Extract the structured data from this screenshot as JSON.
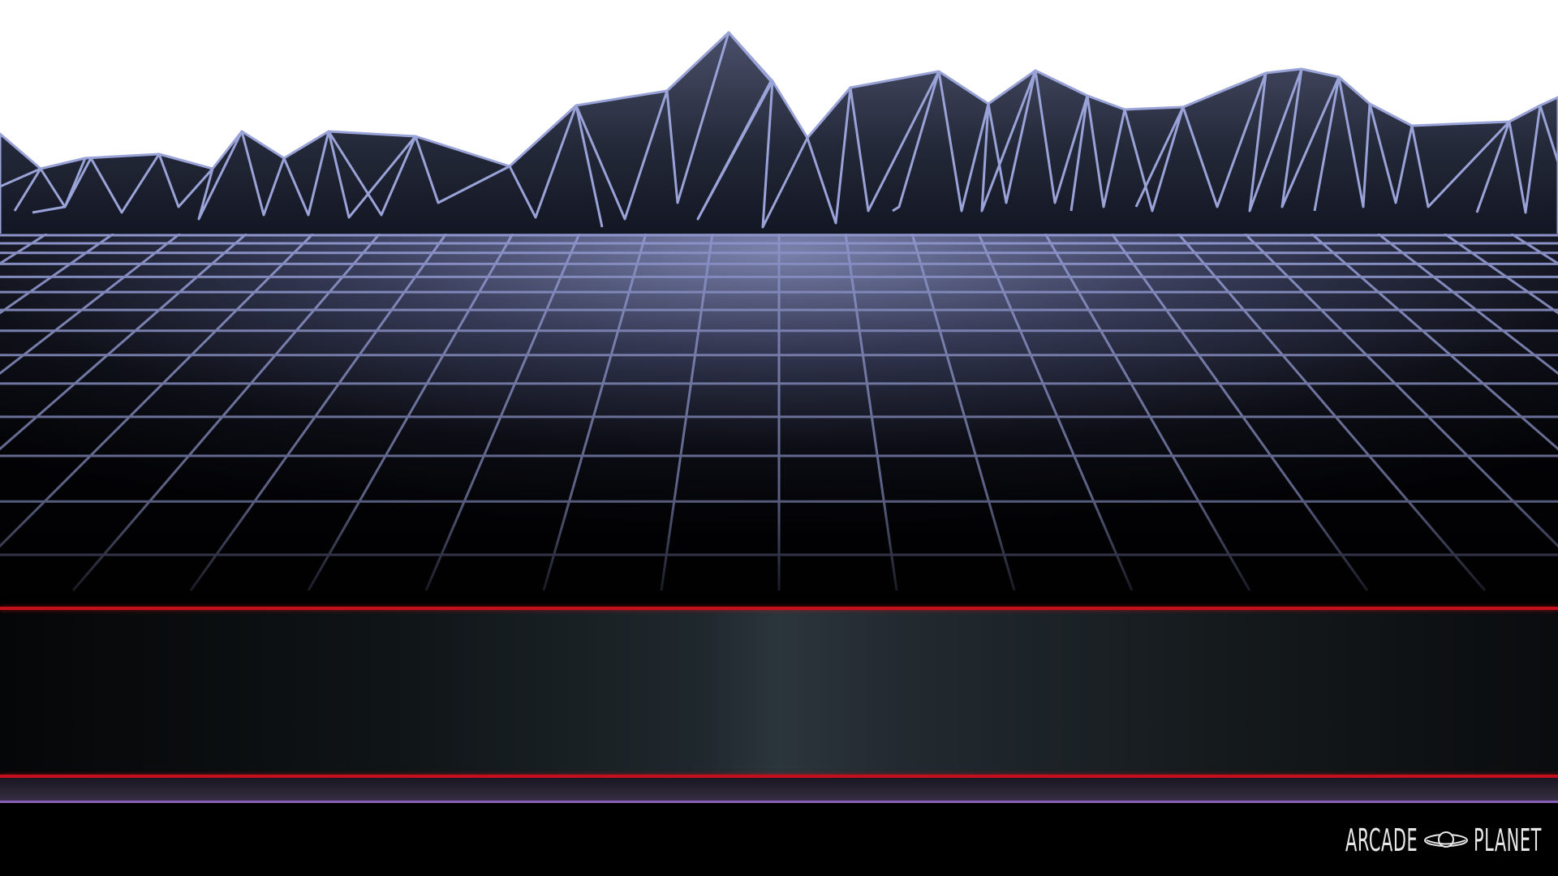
{
  "logo": {
    "part1": "ARCADE",
    "part2": "PLANET",
    "icon": "planet-icon"
  },
  "colors": {
    "sky": "#ffffff",
    "mountain_fill": "#2a2f40",
    "mountain_line": "#9aa3d8",
    "grid_line": "#8b93c8",
    "accent_red": "#c4101c",
    "accent_purple": "#8a5fb8",
    "background": "#000000"
  }
}
